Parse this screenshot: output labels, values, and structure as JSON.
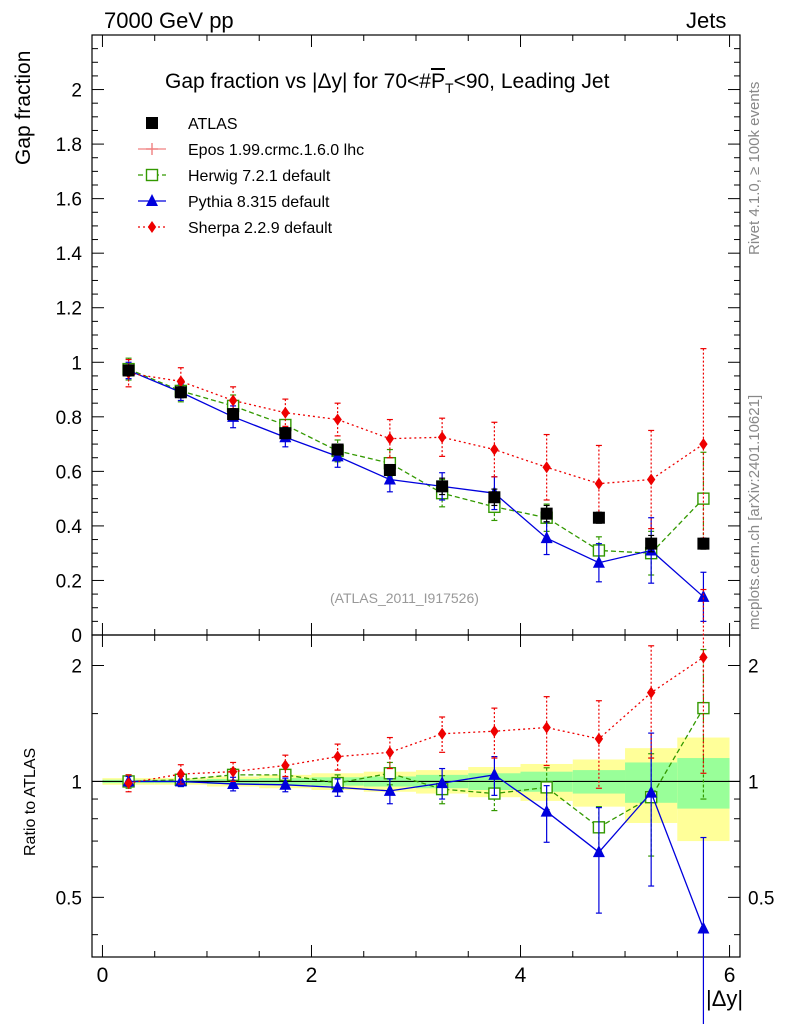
{
  "header": {
    "energy": "7000 GeV pp",
    "category": "Jets"
  },
  "side_labels": {
    "rivet": "Rivet 4.1.0, ≥ 100k events",
    "mcplots": "mcplots.cern.ch [arXiv:2401.10621]"
  },
  "chart_data": [
    {
      "type": "scatter",
      "title_parts": {
        "prefix": "Gap fraction vs |Δy| for 70<#",
        "bar": "P",
        "sub": "T",
        "suffix": "<90, Leading Jet"
      },
      "xlabel": "|Δy|",
      "ylabel": "Gap fraction",
      "xlim": [
        -0.1,
        6.1
      ],
      "ylim": [
        0,
        2.2
      ],
      "xticks": [
        0,
        2,
        4,
        6
      ],
      "yticks": [
        0,
        0.2,
        0.4,
        0.6,
        0.8,
        1,
        1.2,
        1.4,
        1.6,
        1.8,
        2
      ],
      "reference_label": "(ATLAS_2011_I917526)",
      "x": [
        0.25,
        0.75,
        1.25,
        1.75,
        2.25,
        2.75,
        3.25,
        3.75,
        4.25,
        4.75,
        5.25,
        5.75
      ],
      "series": [
        {
          "name": "ATLAS",
          "color": "#000000",
          "marker": "square",
          "values": [
            0.97,
            0.89,
            0.81,
            0.74,
            0.68,
            0.605,
            0.545,
            0.505,
            0.445,
            0.43,
            0.335,
            0.335
          ],
          "errors": [
            0.02,
            0.02,
            0.02,
            0.02,
            0.02,
            0.02,
            0.03,
            0.03,
            0.03,
            0.02,
            0.03,
            0.02
          ]
        },
        {
          "name": "Epos 1.99.crmc.1.6.0 lhc",
          "color": "#f08080",
          "marker": "cross",
          "values": [],
          "errors": []
        },
        {
          "name": "Herwig 7.2.1 default",
          "color": "#339900",
          "marker": "open-square",
          "values": [
            0.975,
            0.895,
            0.84,
            0.77,
            0.675,
            0.63,
            0.52,
            0.47,
            0.43,
            0.31,
            0.3,
            0.5
          ],
          "errors": [
            0.04,
            0.04,
            0.04,
            0.04,
            0.04,
            0.05,
            0.05,
            0.05,
            0.05,
            0.05,
            0.08,
            0.17
          ]
        },
        {
          "name": "Pythia 8.315 default",
          "color": "#0000dd",
          "marker": "triangle",
          "values": [
            0.97,
            0.89,
            0.8,
            0.725,
            0.655,
            0.57,
            0.545,
            0.52,
            0.355,
            0.265,
            0.31,
            0.14
          ],
          "errors": [
            0.03,
            0.03,
            0.04,
            0.035,
            0.04,
            0.045,
            0.05,
            0.06,
            0.06,
            0.07,
            0.12,
            0.09
          ]
        },
        {
          "name": "Sherpa 2.2.9 default",
          "color": "#ee0000",
          "marker": "diamond",
          "values": [
            0.96,
            0.93,
            0.86,
            0.815,
            0.79,
            0.72,
            0.725,
            0.68,
            0.615,
            0.555,
            0.57,
            0.7
          ],
          "errors": [
            0.05,
            0.05,
            0.05,
            0.05,
            0.06,
            0.07,
            0.07,
            0.1,
            0.12,
            0.14,
            0.18,
            0.35
          ]
        }
      ]
    },
    {
      "type": "scatter",
      "ylabel": "Ratio to ATLAS",
      "xlabel": "|Δy|",
      "xlim": [
        -0.1,
        6.1
      ],
      "ylim": [
        0.35,
        2.4
      ],
      "yscale": "log",
      "xticks": [
        0,
        2,
        4,
        6
      ],
      "yticks": [
        0.5,
        1,
        2
      ],
      "x": [
        0.25,
        0.75,
        1.25,
        1.75,
        2.25,
        2.75,
        3.25,
        3.75,
        4.25,
        4.75,
        5.25,
        5.75
      ],
      "bands": {
        "edges": [
          0,
          0.5,
          1,
          1.5,
          2,
          2.5,
          3,
          3.5,
          4,
          4.5,
          5,
          5.5,
          6
        ],
        "yellow": [
          0.02,
          0.02,
          0.03,
          0.04,
          0.05,
          0.06,
          0.07,
          0.09,
          0.11,
          0.14,
          0.22,
          0.3
        ],
        "green": [
          0.01,
          0.01,
          0.015,
          0.02,
          0.025,
          0.03,
          0.04,
          0.05,
          0.06,
          0.07,
          0.12,
          0.15
        ],
        "yellow_color": "#ffff99",
        "green_color": "#99ff99"
      },
      "series": [
        {
          "name": "Herwig 7.2.1 default",
          "color": "#339900",
          "marker": "open-square",
          "values": [
            1.0,
            1.01,
            1.04,
            1.04,
            0.99,
            1.05,
            0.955,
            0.93,
            0.965,
            0.76,
            0.91,
            1.55
          ],
          "errors": [
            0.04,
            0.04,
            0.04,
            0.05,
            0.05,
            0.07,
            0.08,
            0.09,
            0.12,
            0.1,
            0.27,
            0.65
          ]
        },
        {
          "name": "Pythia 8.315 default",
          "color": "#0000dd",
          "marker": "triangle",
          "values": [
            1.0,
            1.0,
            0.985,
            0.98,
            0.965,
            0.945,
            0.99,
            1.04,
            0.835,
            0.655,
            0.935,
            0.415
          ],
          "errors": [
            0.03,
            0.03,
            0.04,
            0.04,
            0.05,
            0.07,
            0.09,
            0.12,
            0.14,
            0.2,
            0.4,
            0.3
          ]
        },
        {
          "name": "Sherpa 2.2.9 default",
          "color": "#ee0000",
          "marker": "diamond",
          "values": [
            0.99,
            1.045,
            1.06,
            1.1,
            1.16,
            1.19,
            1.33,
            1.35,
            1.38,
            1.29,
            1.7,
            2.1
          ],
          "errors": [
            0.05,
            0.06,
            0.06,
            0.07,
            0.09,
            0.11,
            0.14,
            0.2,
            0.28,
            0.33,
            0.55,
            1.05
          ]
        }
      ]
    }
  ]
}
